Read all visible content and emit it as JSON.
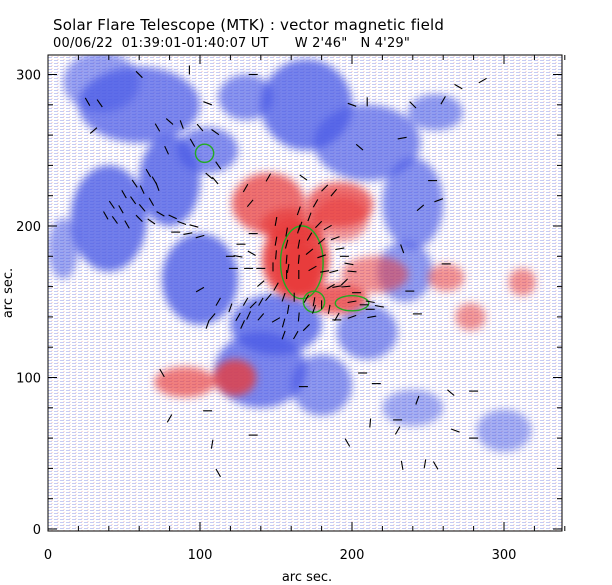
{
  "header": {
    "title": "Solar Flare Telescope (MTK) : vector magnetic field",
    "subtitle": "00/06/22  01:39:01-01:40:07 UT      W 2'46\"   N 4'29\""
  },
  "colors": {
    "positive_polarity": "#e83a3a",
    "negative_polarity": "#4a5ae6",
    "contour": "#22aa22",
    "vector": "#000000"
  },
  "chart_data": {
    "type": "heatmap",
    "title": "Solar Flare Telescope (MTK) : vector magnetic field",
    "xlabel": "arc sec.",
    "ylabel": "arc sec.",
    "xlim": [
      0,
      340
    ],
    "ylim": [
      0,
      318
    ],
    "xticks": [
      "0",
      "100",
      "200",
      "300"
    ],
    "yticks": [
      "0",
      "100",
      "200",
      "300"
    ],
    "xtick_values": [
      0,
      100,
      200,
      300
    ],
    "ytick_values": [
      0,
      100,
      200,
      300
    ],
    "grid": false,
    "series": [
      {
        "polarity": "positive",
        "regions": [
          {
            "x": 163,
            "y": 178,
            "rx": 22,
            "ry": 26,
            "strength": 1.0
          },
          {
            "x": 145,
            "y": 215,
            "rx": 24,
            "ry": 20,
            "strength": 0.7
          },
          {
            "x": 160,
            "y": 200,
            "rx": 20,
            "ry": 12,
            "strength": 0.6
          },
          {
            "x": 192,
            "y": 214,
            "rx": 22,
            "ry": 15,
            "strength": 0.7
          },
          {
            "x": 190,
            "y": 152,
            "rx": 20,
            "ry": 10,
            "strength": 0.8
          },
          {
            "x": 165,
            "y": 172,
            "rx": 14,
            "ry": 18,
            "strength": 1.0
          },
          {
            "x": 123,
            "y": 100,
            "rx": 14,
            "ry": 12,
            "strength": 0.8
          },
          {
            "x": 90,
            "y": 97,
            "rx": 20,
            "ry": 10,
            "strength": 0.55
          },
          {
            "x": 215,
            "y": 168,
            "rx": 22,
            "ry": 12,
            "strength": 0.35
          },
          {
            "x": 262,
            "y": 166,
            "rx": 12,
            "ry": 9,
            "strength": 0.35
          },
          {
            "x": 312,
            "y": 163,
            "rx": 9,
            "ry": 9,
            "strength": 0.35
          },
          {
            "x": 278,
            "y": 140,
            "rx": 10,
            "ry": 9,
            "strength": 0.3
          },
          {
            "x": 193,
            "y": 205,
            "rx": 18,
            "ry": 15,
            "strength": 0.3
          }
        ]
      },
      {
        "polarity": "negative",
        "regions": [
          {
            "x": 40,
            "y": 205,
            "rx": 25,
            "ry": 35,
            "strength": 0.8
          },
          {
            "x": 80,
            "y": 230,
            "rx": 20,
            "ry": 30,
            "strength": 0.8
          },
          {
            "x": 60,
            "y": 280,
            "rx": 40,
            "ry": 25,
            "strength": 0.7
          },
          {
            "x": 105,
            "y": 250,
            "rx": 20,
            "ry": 15,
            "strength": 0.6
          },
          {
            "x": 130,
            "y": 285,
            "rx": 18,
            "ry": 15,
            "strength": 0.55
          },
          {
            "x": 170,
            "y": 280,
            "rx": 30,
            "ry": 30,
            "strength": 0.75
          },
          {
            "x": 210,
            "y": 255,
            "rx": 35,
            "ry": 25,
            "strength": 0.6
          },
          {
            "x": 240,
            "y": 215,
            "rx": 20,
            "ry": 30,
            "strength": 0.55
          },
          {
            "x": 235,
            "y": 170,
            "rx": 18,
            "ry": 20,
            "strength": 0.45
          },
          {
            "x": 100,
            "y": 165,
            "rx": 25,
            "ry": 30,
            "strength": 0.8
          },
          {
            "x": 150,
            "y": 135,
            "rx": 30,
            "ry": 20,
            "strength": 0.75
          },
          {
            "x": 140,
            "y": 105,
            "rx": 30,
            "ry": 25,
            "strength": 0.7
          },
          {
            "x": 180,
            "y": 95,
            "rx": 20,
            "ry": 20,
            "strength": 0.5
          },
          {
            "x": 210,
            "y": 130,
            "rx": 20,
            "ry": 18,
            "strength": 0.5
          },
          {
            "x": 255,
            "y": 275,
            "rx": 18,
            "ry": 12,
            "strength": 0.45
          },
          {
            "x": 35,
            "y": 295,
            "rx": 25,
            "ry": 20,
            "strength": 0.4
          },
          {
            "x": 300,
            "y": 65,
            "rx": 18,
            "ry": 14,
            "strength": 0.25
          },
          {
            "x": 240,
            "y": 80,
            "rx": 20,
            "ry": 12,
            "strength": 0.25
          },
          {
            "x": 10,
            "y": 185,
            "rx": 10,
            "ry": 20,
            "strength": 0.35
          }
        ]
      }
    ],
    "contours": [
      {
        "x": 103,
        "y": 248,
        "rx": 6,
        "ry": 6
      },
      {
        "x": 167,
        "y": 176,
        "rx": 14,
        "ry": 24
      },
      {
        "x": 175,
        "y": 150,
        "rx": 7,
        "ry": 7
      },
      {
        "x": 200,
        "y": 149,
        "rx": 11,
        "ry": 5
      }
    ],
    "vectors": [
      {
        "x": 26,
        "y": 282,
        "a": -60
      },
      {
        "x": 34,
        "y": 281,
        "a": -55
      },
      {
        "x": 60,
        "y": 300,
        "a": -45
      },
      {
        "x": 105,
        "y": 281,
        "a": -20
      },
      {
        "x": 72,
        "y": 265,
        "a": -60
      },
      {
        "x": 80,
        "y": 269,
        "a": -40
      },
      {
        "x": 88,
        "y": 267,
        "a": -70
      },
      {
        "x": 100,
        "y": 265,
        "a": -50
      },
      {
        "x": 110,
        "y": 262,
        "a": -35
      },
      {
        "x": 78,
        "y": 250,
        "a": -65
      },
      {
        "x": 95,
        "y": 255,
        "a": -60
      },
      {
        "x": 112,
        "y": 240,
        "a": -55
      },
      {
        "x": 106,
        "y": 233,
        "a": -40
      },
      {
        "x": 110,
        "y": 230,
        "a": -50
      },
      {
        "x": 66,
        "y": 235,
        "a": -60
      },
      {
        "x": 70,
        "y": 230,
        "a": -60
      },
      {
        "x": 72,
        "y": 226,
        "a": -70
      },
      {
        "x": 57,
        "y": 228,
        "a": -55
      },
      {
        "x": 62,
        "y": 224,
        "a": -65
      },
      {
        "x": 50,
        "y": 221,
        "a": -60
      },
      {
        "x": 56,
        "y": 217,
        "a": -55
      },
      {
        "x": 62,
        "y": 212,
        "a": -50
      },
      {
        "x": 68,
        "y": 216,
        "a": -60
      },
      {
        "x": 42,
        "y": 214,
        "a": -55
      },
      {
        "x": 48,
        "y": 211,
        "a": -60
      },
      {
        "x": 38,
        "y": 207,
        "a": -60
      },
      {
        "x": 44,
        "y": 204,
        "a": -55
      },
      {
        "x": 52,
        "y": 201,
        "a": -60
      },
      {
        "x": 60,
        "y": 205,
        "a": -45
      },
      {
        "x": 68,
        "y": 203,
        "a": -35
      },
      {
        "x": 74,
        "y": 208,
        "a": -30
      },
      {
        "x": 82,
        "y": 206,
        "a": -25
      },
      {
        "x": 88,
        "y": 202,
        "a": -20
      },
      {
        "x": 96,
        "y": 200,
        "a": -15
      },
      {
        "x": 84,
        "y": 196,
        "a": 0
      },
      {
        "x": 92,
        "y": 195,
        "a": 10
      },
      {
        "x": 100,
        "y": 193,
        "a": 15
      },
      {
        "x": 127,
        "y": 188,
        "a": 0
      },
      {
        "x": 134,
        "y": 182,
        "a": -30
      },
      {
        "x": 150,
        "y": 190,
        "a": 80
      },
      {
        "x": 150,
        "y": 181,
        "a": 85
      },
      {
        "x": 148,
        "y": 173,
        "a": 90
      },
      {
        "x": 140,
        "y": 172,
        "a": 0
      },
      {
        "x": 132,
        "y": 172,
        "a": 0
      },
      {
        "x": 122,
        "y": 172,
        "a": 0
      },
      {
        "x": 157,
        "y": 196,
        "a": 80
      },
      {
        "x": 157,
        "y": 188,
        "a": 75
      },
      {
        "x": 157,
        "y": 178,
        "a": 85
      },
      {
        "x": 157,
        "y": 168,
        "a": 90
      },
      {
        "x": 165,
        "y": 198,
        "a": 75
      },
      {
        "x": 165,
        "y": 188,
        "a": 80
      },
      {
        "x": 165,
        "y": 178,
        "a": 85
      },
      {
        "x": 165,
        "y": 168,
        "a": 90
      },
      {
        "x": 172,
        "y": 193,
        "a": 60
      },
      {
        "x": 172,
        "y": 183,
        "a": 40
      },
      {
        "x": 174,
        "y": 172,
        "a": 30
      },
      {
        "x": 180,
        "y": 190,
        "a": 40
      },
      {
        "x": 180,
        "y": 180,
        "a": 20
      },
      {
        "x": 182,
        "y": 170,
        "a": 10
      },
      {
        "x": 188,
        "y": 170,
        "a": 15
      },
      {
        "x": 186,
        "y": 160,
        "a": 30
      },
      {
        "x": 190,
        "y": 160,
        "a": 10
      },
      {
        "x": 196,
        "y": 160,
        "a": 5
      },
      {
        "x": 203,
        "y": 156,
        "a": 0
      },
      {
        "x": 200,
        "y": 150,
        "a": 10
      },
      {
        "x": 208,
        "y": 148,
        "a": 0
      },
      {
        "x": 212,
        "y": 150,
        "a": -10
      },
      {
        "x": 212,
        "y": 145,
        "a": 0
      },
      {
        "x": 218,
        "y": 147,
        "a": -10
      },
      {
        "x": 150,
        "y": 160,
        "a": 60
      },
      {
        "x": 140,
        "y": 162,
        "a": 40
      },
      {
        "x": 145,
        "y": 153,
        "a": 50
      },
      {
        "x": 155,
        "y": 153,
        "a": 70
      },
      {
        "x": 162,
        "y": 153,
        "a": 90
      },
      {
        "x": 170,
        "y": 152,
        "a": 60
      },
      {
        "x": 180,
        "y": 148,
        "a": 90
      },
      {
        "x": 185,
        "y": 145,
        "a": 80
      },
      {
        "x": 175,
        "y": 145,
        "a": 70
      },
      {
        "x": 158,
        "y": 145,
        "a": 80
      },
      {
        "x": 165,
        "y": 140,
        "a": 85
      },
      {
        "x": 155,
        "y": 136,
        "a": 75
      },
      {
        "x": 163,
        "y": 128,
        "a": 60
      },
      {
        "x": 155,
        "y": 128,
        "a": 70
      },
      {
        "x": 170,
        "y": 133,
        "a": 45
      },
      {
        "x": 190,
        "y": 140,
        "a": 60
      },
      {
        "x": 200,
        "y": 140,
        "a": 20
      },
      {
        "x": 213,
        "y": 140,
        "a": 10
      },
      {
        "x": 165,
        "y": 210,
        "a": 70
      },
      {
        "x": 172,
        "y": 206,
        "a": 70
      },
      {
        "x": 178,
        "y": 201,
        "a": 45
      },
      {
        "x": 184,
        "y": 199,
        "a": 30
      },
      {
        "x": 189,
        "y": 192,
        "a": 20
      },
      {
        "x": 192,
        "y": 185,
        "a": 10
      },
      {
        "x": 195,
        "y": 180,
        "a": 0
      },
      {
        "x": 198,
        "y": 175,
        "a": -10
      },
      {
        "x": 200,
        "y": 170,
        "a": -5
      },
      {
        "x": 176,
        "y": 215,
        "a": 60
      },
      {
        "x": 182,
        "y": 225,
        "a": 45
      },
      {
        "x": 188,
        "y": 222,
        "a": 50
      },
      {
        "x": 130,
        "y": 225,
        "a": 60
      },
      {
        "x": 133,
        "y": 215,
        "a": 50
      },
      {
        "x": 100,
        "y": 158,
        "a": 30
      },
      {
        "x": 112,
        "y": 150,
        "a": 60
      },
      {
        "x": 120,
        "y": 146,
        "a": 70
      },
      {
        "x": 130,
        "y": 150,
        "a": 60
      },
      {
        "x": 108,
        "y": 140,
        "a": 50
      },
      {
        "x": 125,
        "y": 140,
        "a": 60
      },
      {
        "x": 132,
        "y": 141,
        "a": 65
      },
      {
        "x": 135,
        "y": 148,
        "a": 45
      },
      {
        "x": 140,
        "y": 150,
        "a": 60
      },
      {
        "x": 105,
        "y": 135,
        "a": 70
      },
      {
        "x": 128,
        "y": 135,
        "a": 65
      },
      {
        "x": 140,
        "y": 140,
        "a": 50
      },
      {
        "x": 150,
        "y": 138,
        "a": 30
      },
      {
        "x": 120,
        "y": 180,
        "a": 0
      },
      {
        "x": 125,
        "y": 180,
        "a": -10
      },
      {
        "x": 135,
        "y": 195,
        "a": 0
      },
      {
        "x": 150,
        "y": 203,
        "a": 80
      },
      {
        "x": 205,
        "y": 252,
        "a": -40
      },
      {
        "x": 168,
        "y": 232,
        "a": -35
      },
      {
        "x": 145,
        "y": 232,
        "a": 60
      },
      {
        "x": 245,
        "y": 212,
        "a": 40
      },
      {
        "x": 257,
        "y": 217,
        "a": 20
      },
      {
        "x": 253,
        "y": 230,
        "a": 0
      },
      {
        "x": 260,
        "y": 283,
        "a": 60
      },
      {
        "x": 240,
        "y": 280,
        "a": -45
      },
      {
        "x": 200,
        "y": 280,
        "a": -20
      },
      {
        "x": 233,
        "y": 258,
        "a": 10
      },
      {
        "x": 210,
        "y": 282,
        "a": 90
      },
      {
        "x": 75,
        "y": 103,
        "a": -60
      },
      {
        "x": 168,
        "y": 94,
        "a": 0
      },
      {
        "x": 190,
        "y": 138,
        "a": 0
      },
      {
        "x": 243,
        "y": 142,
        "a": 0
      },
      {
        "x": 233,
        "y": 185,
        "a": -70
      },
      {
        "x": 262,
        "y": 175,
        "a": 0
      },
      {
        "x": 238,
        "y": 157,
        "a": 0
      },
      {
        "x": 195,
        "y": 163,
        "a": 45
      },
      {
        "x": 175,
        "y": 150,
        "a": 80
      },
      {
        "x": 30,
        "y": 263,
        "a": 40
      },
      {
        "x": 135,
        "y": 300,
        "a": 0
      },
      {
        "x": 93,
        "y": 303,
        "a": 90
      },
      {
        "x": 270,
        "y": 292,
        "a": -30
      },
      {
        "x": 286,
        "y": 296,
        "a": 30
      },
      {
        "x": 166,
        "y": 200,
        "a": 70
      },
      {
        "x": 158,
        "y": 172,
        "a": 80
      },
      {
        "x": 105,
        "y": 78,
        "a": 0
      },
      {
        "x": 135,
        "y": 62,
        "a": 0
      },
      {
        "x": 268,
        "y": 65,
        "a": -20
      },
      {
        "x": 280,
        "y": 60,
        "a": 0
      },
      {
        "x": 230,
        "y": 65,
        "a": 60
      },
      {
        "x": 108,
        "y": 56,
        "a": 80
      },
      {
        "x": 80,
        "y": 73,
        "a": 60
      },
      {
        "x": 233,
        "y": 42,
        "a": -80
      },
      {
        "x": 248,
        "y": 43,
        "a": 80
      },
      {
        "x": 255,
        "y": 42,
        "a": -60
      },
      {
        "x": 112,
        "y": 37,
        "a": -60
      },
      {
        "x": 265,
        "y": 90,
        "a": -40
      },
      {
        "x": 280,
        "y": 91,
        "a": 0
      },
      {
        "x": 243,
        "y": 85,
        "a": 70
      },
      {
        "x": 212,
        "y": 70,
        "a": 85
      },
      {
        "x": 197,
        "y": 57,
        "a": -60
      },
      {
        "x": 207,
        "y": 103,
        "a": 0
      },
      {
        "x": 216,
        "y": 96,
        "a": 0
      },
      {
        "x": 230,
        "y": 72,
        "a": 0
      }
    ]
  }
}
